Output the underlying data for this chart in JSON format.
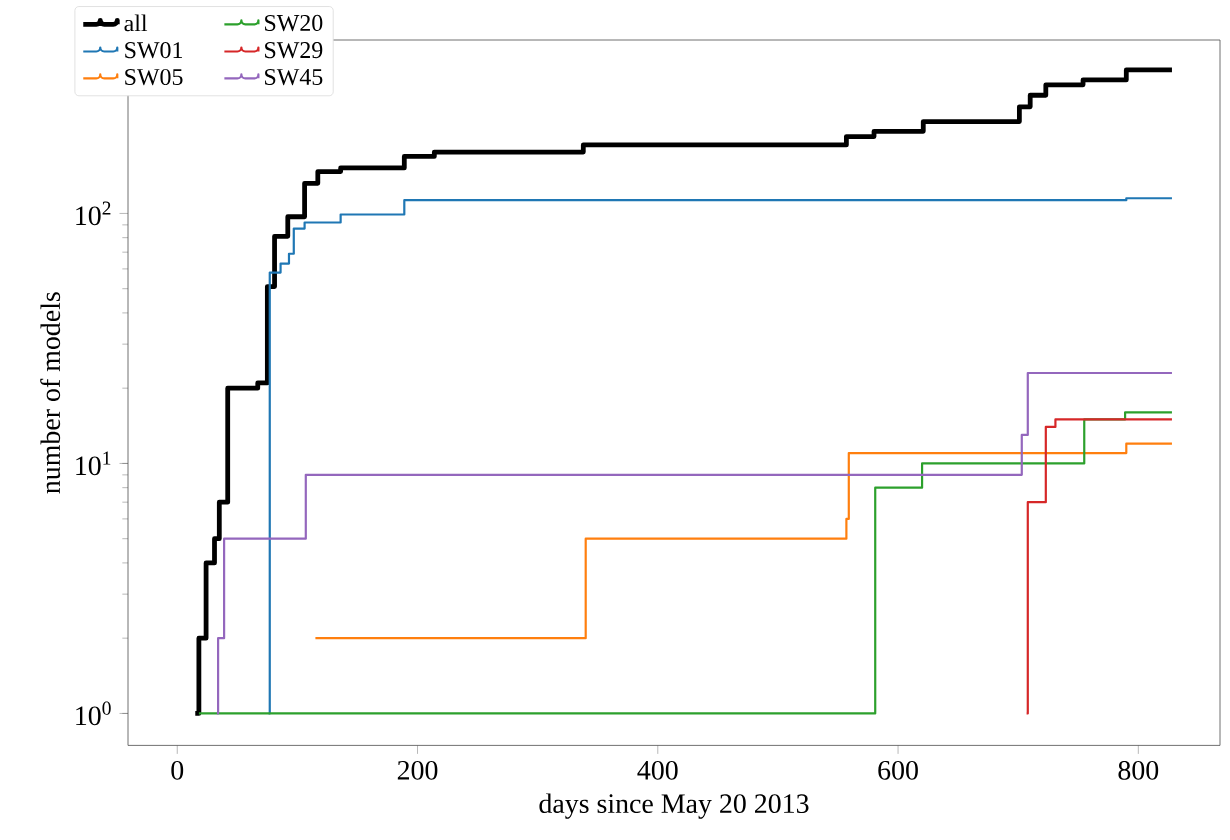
{
  "chart_data": {
    "type": "step",
    "xlabel": "days since May 20 2013",
    "ylabel": "number of models",
    "log": "y",
    "legend": "top left",
    "grid": false,
    "marker": "none",
    "line_style": "solid",
    "xlim": [
      -41,
      868
    ],
    "ylim": [
      0.745,
      494
    ],
    "xticks": [
      0,
      200,
      400,
      600,
      800
    ],
    "yticks": [
      {
        "value": 1,
        "label": "10$^{0}$"
      },
      {
        "value": 10,
        "label": "10$^{1}$"
      },
      {
        "value": 100,
        "label": "10$^{2}$"
      }
    ],
    "series": [
      {
        "name": "all",
        "color": "#000000",
        "x": [
          15,
          18,
          24,
          31,
          35,
          42,
          67,
          75,
          81,
          92,
          106,
          117,
          136,
          189,
          214,
          338,
          557,
          580,
          621,
          701,
          710,
          723,
          754,
          790,
          828
        ],
        "values": [
          1,
          2,
          4,
          5,
          7,
          20,
          21,
          51,
          81,
          97,
          132,
          147,
          152,
          169,
          176,
          188,
          203,
          213,
          233,
          267,
          297,
          327,
          342,
          375,
          375
        ]
      },
      {
        "name": "SW01",
        "color": "#1f77b4",
        "x": [
          76,
          77,
          86,
          93,
          97,
          106,
          136,
          189,
          790,
          828
        ],
        "values": [
          1,
          58,
          63,
          69,
          87,
          92,
          99,
          113,
          115,
          115
        ]
      },
      {
        "name": "SW05",
        "color": "#ff7f0e",
        "x": [
          115,
          340,
          557,
          559,
          790,
          828
        ],
        "values": [
          2,
          5,
          6,
          11,
          12,
          12
        ]
      },
      {
        "name": "SW20",
        "color": "#2ca02c",
        "x": [
          18,
          581,
          620,
          755,
          789,
          828
        ],
        "values": [
          1,
          8,
          10,
          15,
          16,
          16
        ]
      },
      {
        "name": "SW29",
        "color": "#d62728",
        "x": [
          707,
          708,
          723,
          731,
          828
        ],
        "values": [
          1,
          7,
          14,
          15,
          15
        ]
      },
      {
        "name": "SW45",
        "color": "#9467bd",
        "x": [
          33,
          34,
          39,
          107,
          703,
          708,
          828
        ],
        "values": [
          1,
          2,
          5,
          9,
          13,
          23,
          23
        ]
      }
    ]
  }
}
